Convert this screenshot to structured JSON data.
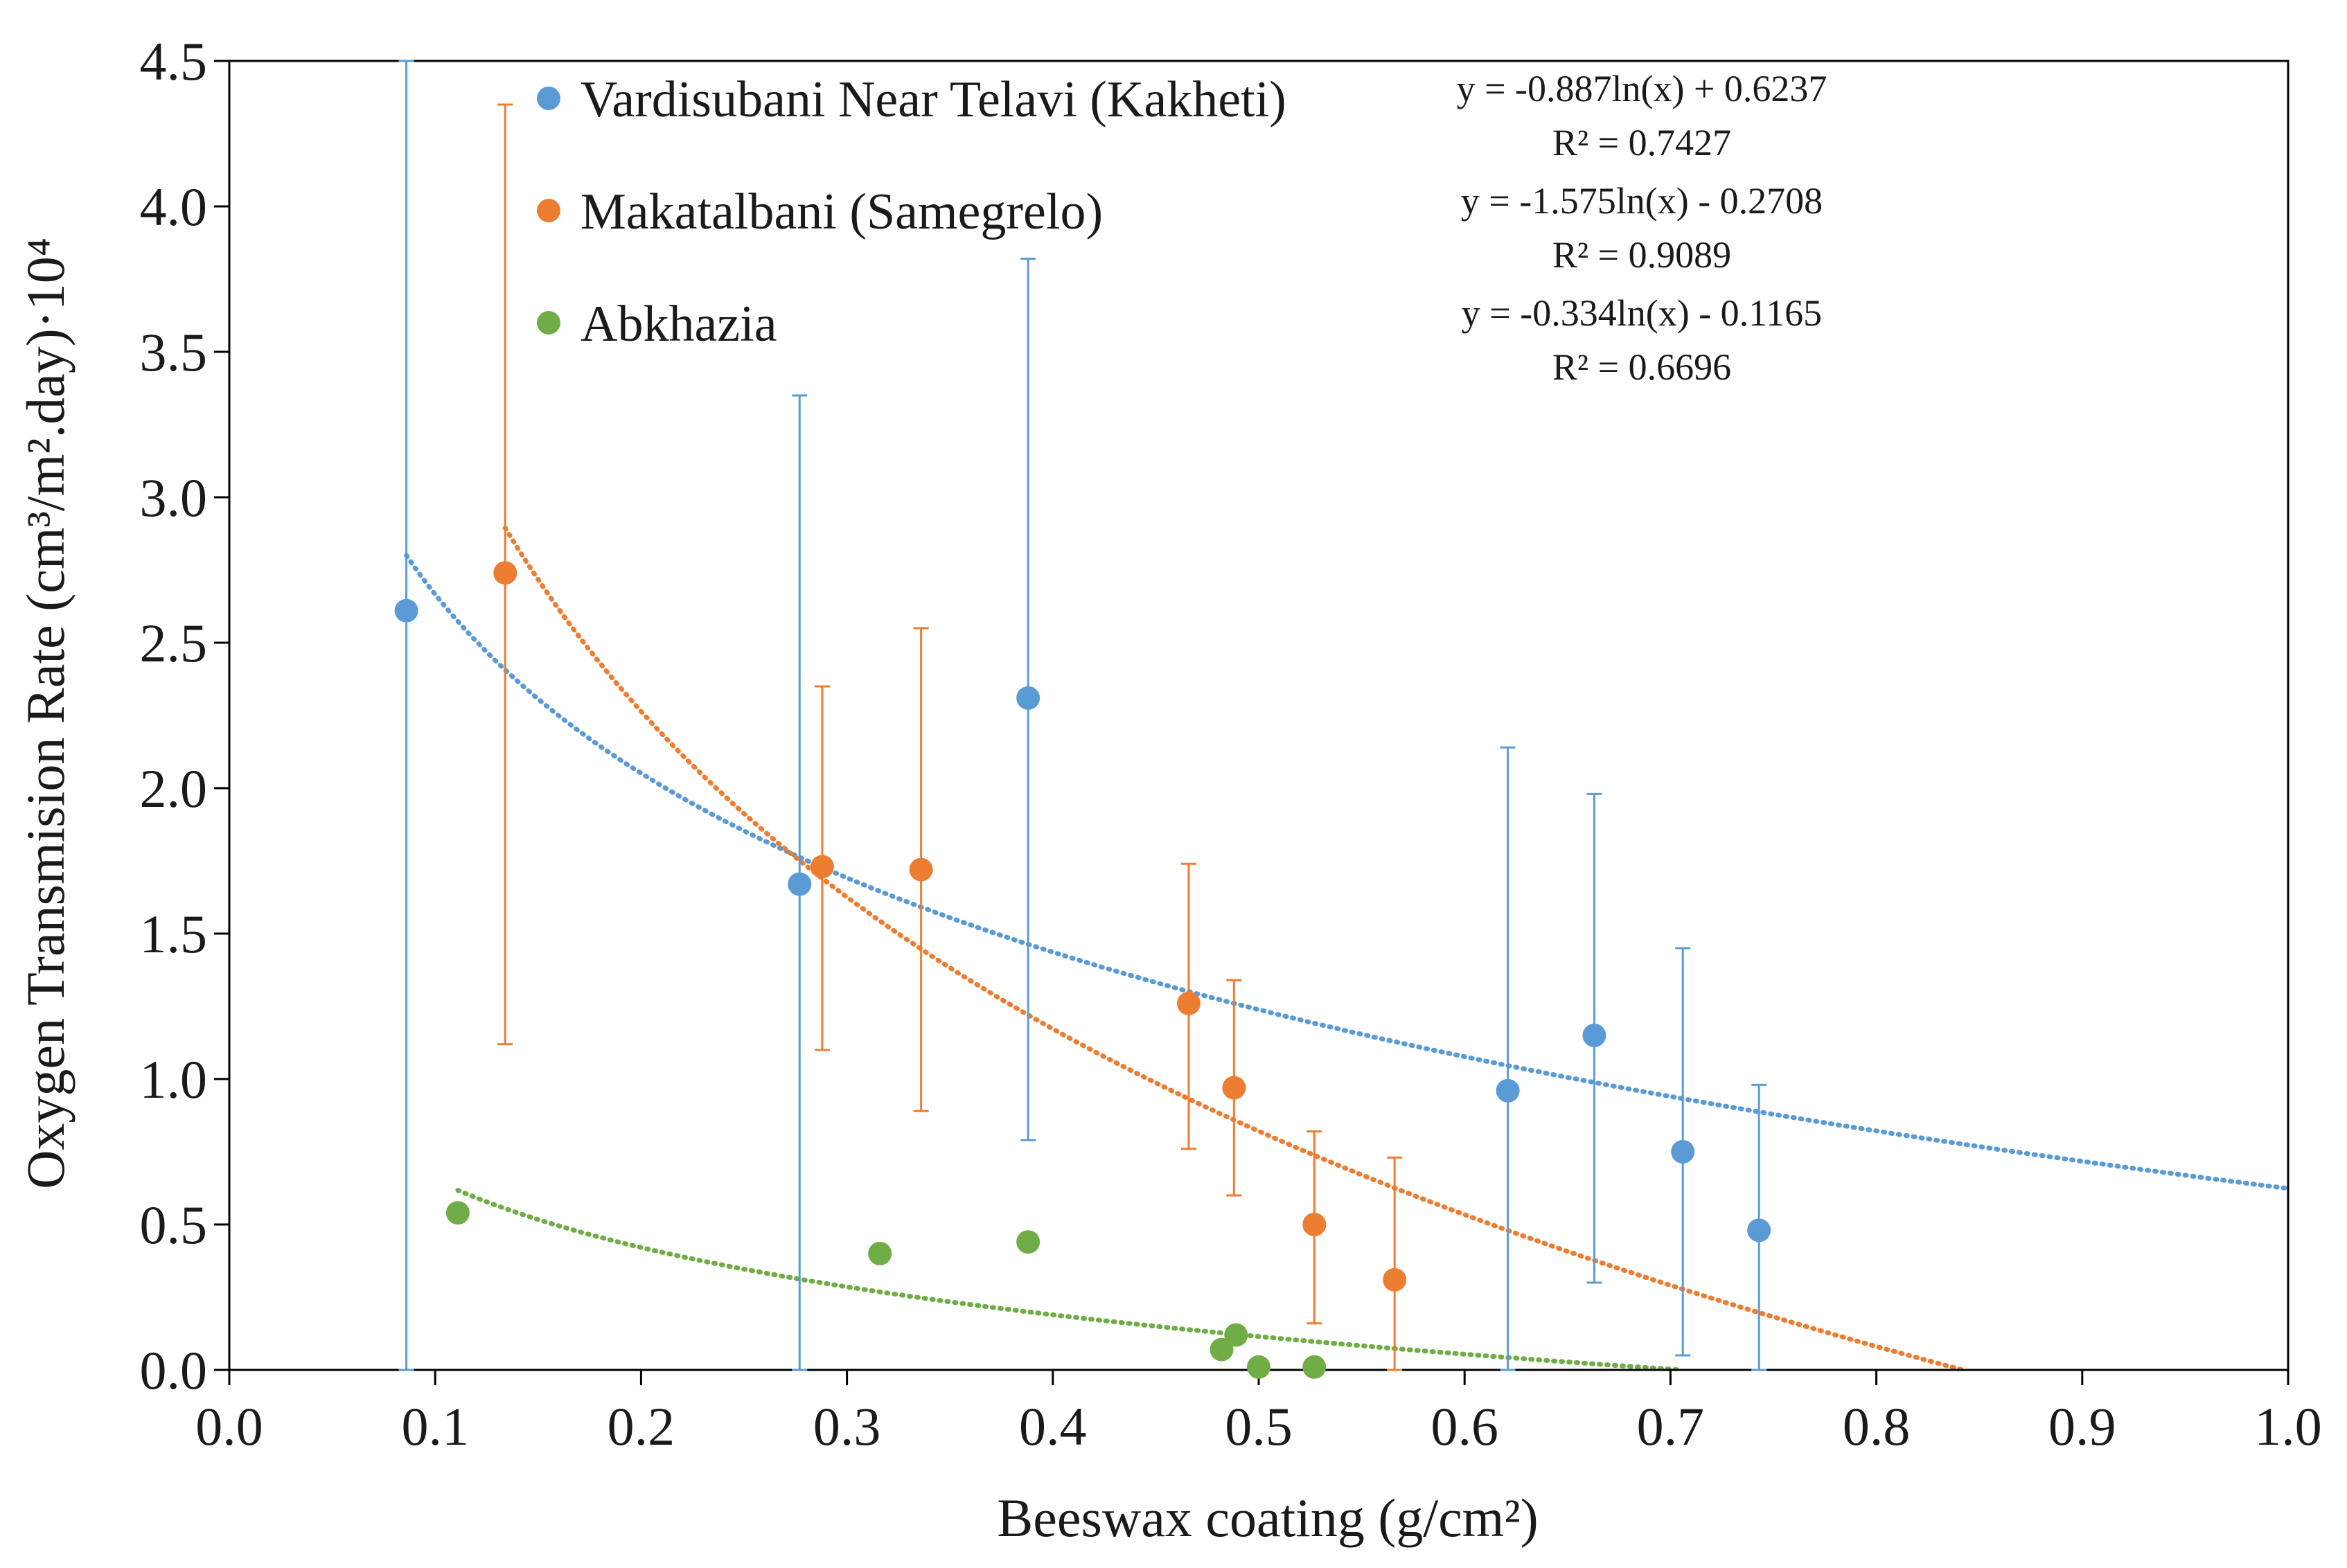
{
  "chart_data": {
    "type": "scatter",
    "title": "",
    "xlabel": "Beeswax coating (g/cm²)",
    "ylabel": "Oxygen Transmision Rate (cm³/m².day)·10⁴",
    "xlim": [
      0.0,
      1.0
    ],
    "ylim": [
      0.0,
      4.5
    ],
    "xticks": [
      0.0,
      0.1,
      0.2,
      0.3,
      0.4,
      0.5,
      0.6,
      0.7,
      0.8,
      0.9,
      1.0
    ],
    "yticks": [
      0.0,
      0.5,
      1.0,
      1.5,
      2.0,
      2.5,
      3.0,
      3.5,
      4.0,
      4.5
    ],
    "x_tick_labels": [
      "0.0",
      "0.1",
      "0.2",
      "0.3",
      "0.4",
      "0.5",
      "0.6",
      "0.7",
      "0.8",
      "0.9",
      "1.0"
    ],
    "y_tick_labels": [
      "0.0",
      "0.5",
      "1.0",
      "1.5",
      "2.0",
      "2.5",
      "3.0",
      "3.5",
      "4.0",
      "4.5"
    ],
    "legend_position": "top-left",
    "grid": false,
    "series": [
      {
        "name": "Vardisubani Near Telavi (Kakheti)",
        "color": "#5B9BD5",
        "points": [
          {
            "x": 0.086,
            "y": 2.61,
            "err_low": 0.0,
            "err_high": 4.5
          },
          {
            "x": 0.277,
            "y": 1.67,
            "err_low": 0.0,
            "err_high": 3.35
          },
          {
            "x": 0.388,
            "y": 2.31,
            "err_low": 0.79,
            "err_high": 3.82
          },
          {
            "x": 0.621,
            "y": 0.96,
            "err_low": 0.0,
            "err_high": 2.14
          },
          {
            "x": 0.663,
            "y": 1.15,
            "err_low": 0.3,
            "err_high": 1.98
          },
          {
            "x": 0.706,
            "y": 0.75,
            "err_low": 0.05,
            "err_high": 1.45
          },
          {
            "x": 0.743,
            "y": 0.48,
            "err_low": 0.0,
            "err_high": 0.98
          }
        ],
        "trendline": {
          "type": "logarithmic",
          "a": -0.887,
          "b": 0.6237,
          "x_start": 0.086,
          "equation": "y = -0.887ln(x) + 0.6237",
          "r2_label": "R² = 0.7427"
        }
      },
      {
        "name": "Makatalbani (Samegrelo)",
        "color": "#ED7D31",
        "points": [
          {
            "x": 0.134,
            "y": 2.74,
            "err_low": 1.12,
            "err_high": 4.35
          },
          {
            "x": 0.288,
            "y": 1.73,
            "err_low": 1.1,
            "err_high": 2.35
          },
          {
            "x": 0.336,
            "y": 1.72,
            "err_low": 0.89,
            "err_high": 2.55
          },
          {
            "x": 0.466,
            "y": 1.26,
            "err_low": 0.76,
            "err_high": 1.74
          },
          {
            "x": 0.488,
            "y": 0.97,
            "err_low": 0.6,
            "err_high": 1.34
          },
          {
            "x": 0.527,
            "y": 0.5,
            "err_low": 0.16,
            "err_high": 0.82
          },
          {
            "x": 0.566,
            "y": 0.31,
            "err_low": 0.0,
            "err_high": 0.73
          }
        ],
        "trendline": {
          "type": "logarithmic",
          "a": -1.575,
          "b": -0.2708,
          "x_start": 0.134,
          "equation": "y = -1.575ln(x) - 0.2708",
          "r2_label": "R² = 0.9089"
        }
      },
      {
        "name": "Abkhazia",
        "color": "#70AD47",
        "points": [
          {
            "x": 0.111,
            "y": 0.54
          },
          {
            "x": 0.316,
            "y": 0.4
          },
          {
            "x": 0.388,
            "y": 0.44
          },
          {
            "x": 0.482,
            "y": 0.07
          },
          {
            "x": 0.489,
            "y": 0.12
          },
          {
            "x": 0.5,
            "y": 0.01
          },
          {
            "x": 0.527,
            "y": 0.01
          }
        ],
        "trendline": {
          "type": "logarithmic",
          "a": -0.334,
          "b": -0.1165,
          "x_start": 0.111,
          "equation": "y = -0.334ln(x) - 0.1165",
          "r2_label": "R² = 0.6696"
        }
      }
    ]
  }
}
